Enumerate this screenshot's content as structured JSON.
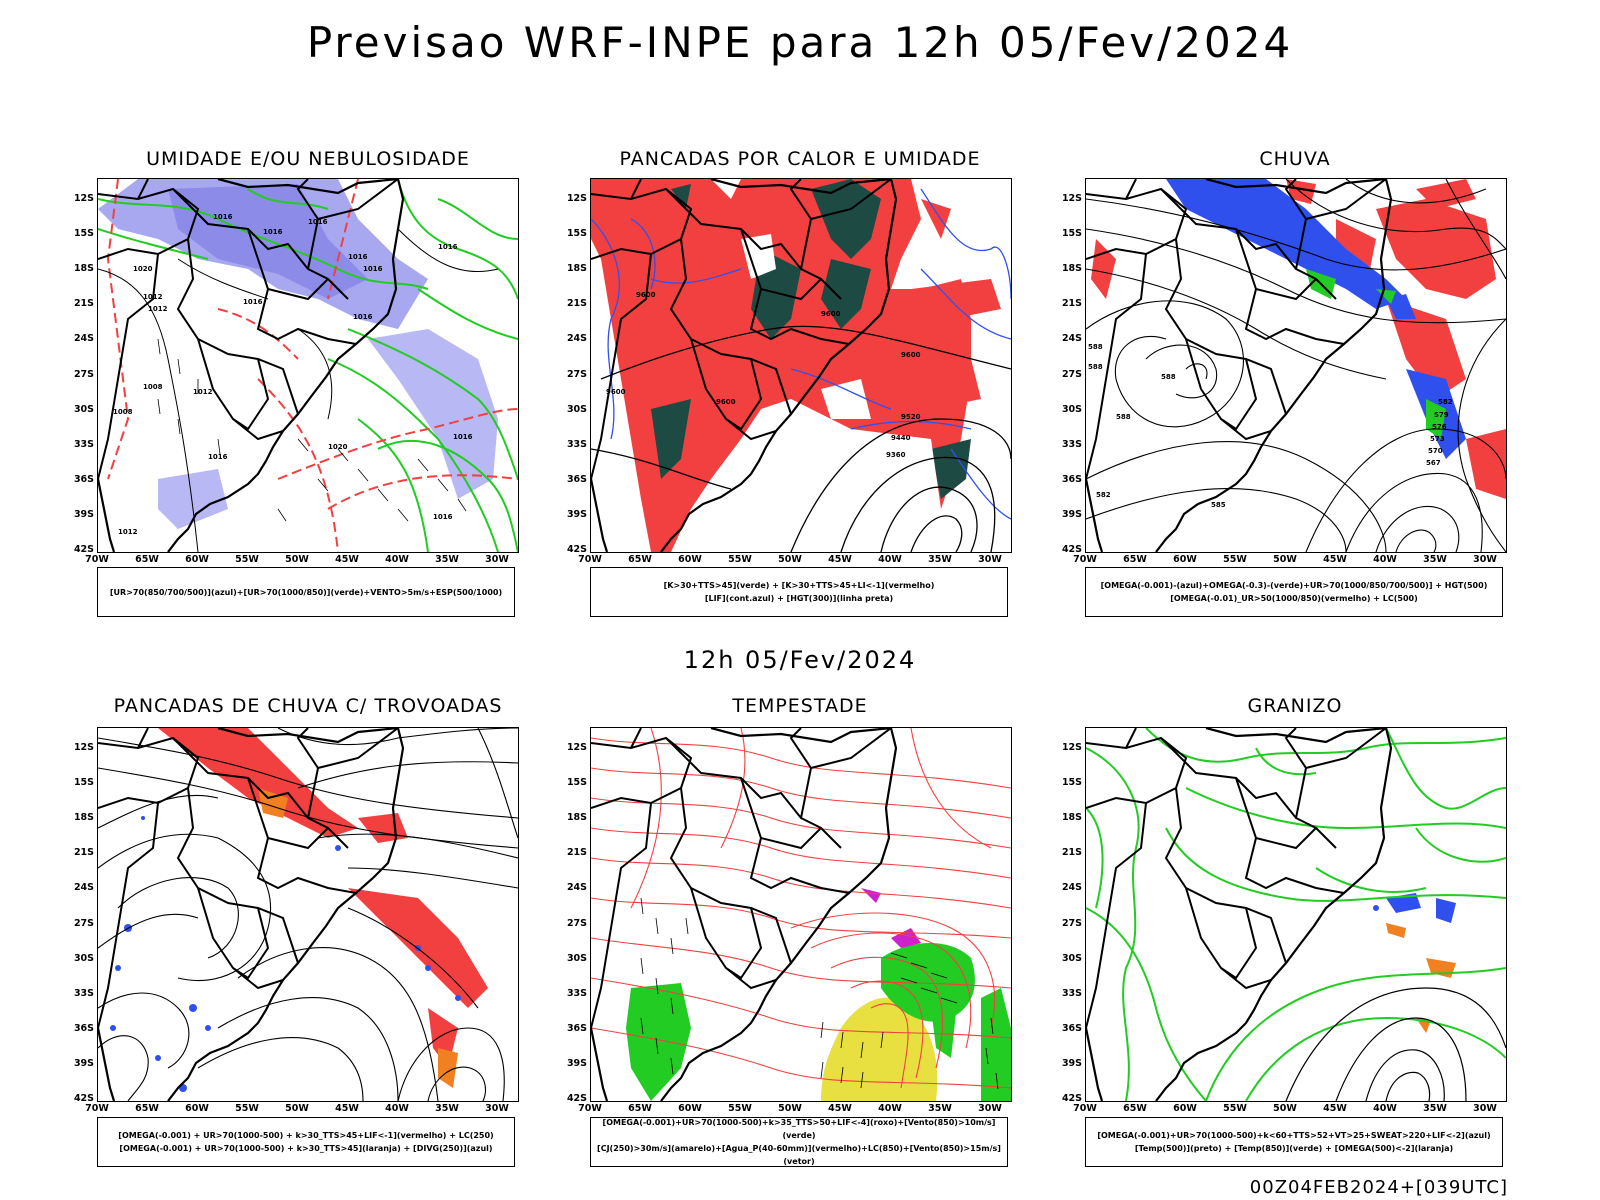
{
  "page": {
    "title": "Previsao WRF-INPE  para 12h 05/Fev/2024",
    "mid_title": "12h 05/Fev/2024",
    "footer": "00Z04FEB2024+[039UTC]"
  },
  "axes": {
    "lat_labels": [
      "12S",
      "15S",
      "18S",
      "21S",
      "24S",
      "27S",
      "30S",
      "33S",
      "36S",
      "39S",
      "42S"
    ],
    "lon_labels": [
      "70W",
      "65W",
      "60W",
      "55W",
      "50W",
      "45W",
      "40W",
      "35W",
      "30W"
    ]
  },
  "colors": {
    "red": "#f24040",
    "green": "#22cc22",
    "blue": "#3050ee",
    "lavender": "#a8a8f0",
    "darkteal": "#1e4a44",
    "orange": "#f08020",
    "yellow": "#e8e040",
    "purple": "#cc22cc",
    "black": "#000000"
  },
  "panels": [
    {
      "id": "umidade",
      "title": "UMIDADE E/OU NEBULOSIDADE",
      "legend": [
        "[UR>70(850/700/500)](azul)+[UR>70(1000/850)](verde)+VENTO>5m/s+ESP(500/1000)"
      ],
      "contour_labels": [
        "1016",
        "1016",
        "1016",
        "1016",
        "1016",
        "1016",
        "1012",
        "1012",
        "1016",
        "1020",
        "1008",
        "1016",
        "1012",
        "1020",
        "1008",
        "1016",
        "1012",
        "1016",
        "1016"
      ]
    },
    {
      "id": "pancadas-calor",
      "title": "PANCADAS POR CALOR E UMIDADE",
      "legend": [
        "[K>30+TTS>45](verde) + [K>30+TTS>45+LI<-1](vermelho)",
        "[LIF](cont.azul) + [HGT(300)](linha preta)"
      ],
      "contour_labels": [
        "9600",
        "9600",
        "9600",
        "9600",
        "9600",
        "9520",
        "9440",
        "9360"
      ]
    },
    {
      "id": "chuva",
      "title": "CHUVA",
      "legend": [
        "[OMEGA(-0.001)-(azul)+OMEGA(-0.3)-(verde)+UR>70(1000/850/700/500)] + HGT(500)",
        "[OMEGA(-0.01)_UR>50(1000/850)(vermelho) + LC(500)"
      ],
      "contour_labels": [
        "588",
        "588",
        "588",
        "588",
        "585",
        "582",
        "582",
        "579",
        "576",
        "573",
        "570",
        "567"
      ]
    },
    {
      "id": "pancadas-trovoadas",
      "title": "PANCADAS DE CHUVA C/ TROVOADAS",
      "legend": [
        "[OMEGA(-0.001) + UR>70(1000-500) + k>30_TTS>45+LIF<-1](vermelho) + LC(250)",
        "[OMEGA(-0.001) + UR>70(1000-500) + k>30_TTS>45](laranja) + [DIVG(250)](azul)"
      ]
    },
    {
      "id": "tempestade",
      "title": "TEMPESTADE",
      "legend": [
        "[OMEGA(-0.001)+UR>70(1000-500)+k>35_TTS>50+LIF<-4](roxo)+[Vento(850)>10m/s](verde)",
        "[CJ(250)>30m/s](amarelo)+[Agua_P(40-60mm)](vermelho)+LC(850)+[Vento(850)>15m/s](vetor)"
      ]
    },
    {
      "id": "granizo",
      "title": "GRANIZO",
      "legend": [
        "[OMEGA(-0.001)+UR>70(1000-500)+k<60+TTS>52+VT>25+SWEAT>220+LIF<-2](azul)",
        "[Temp(500)](preto) + [Temp(850)](verde) + [OMEGA(500)<-2](laranja)"
      ]
    }
  ]
}
